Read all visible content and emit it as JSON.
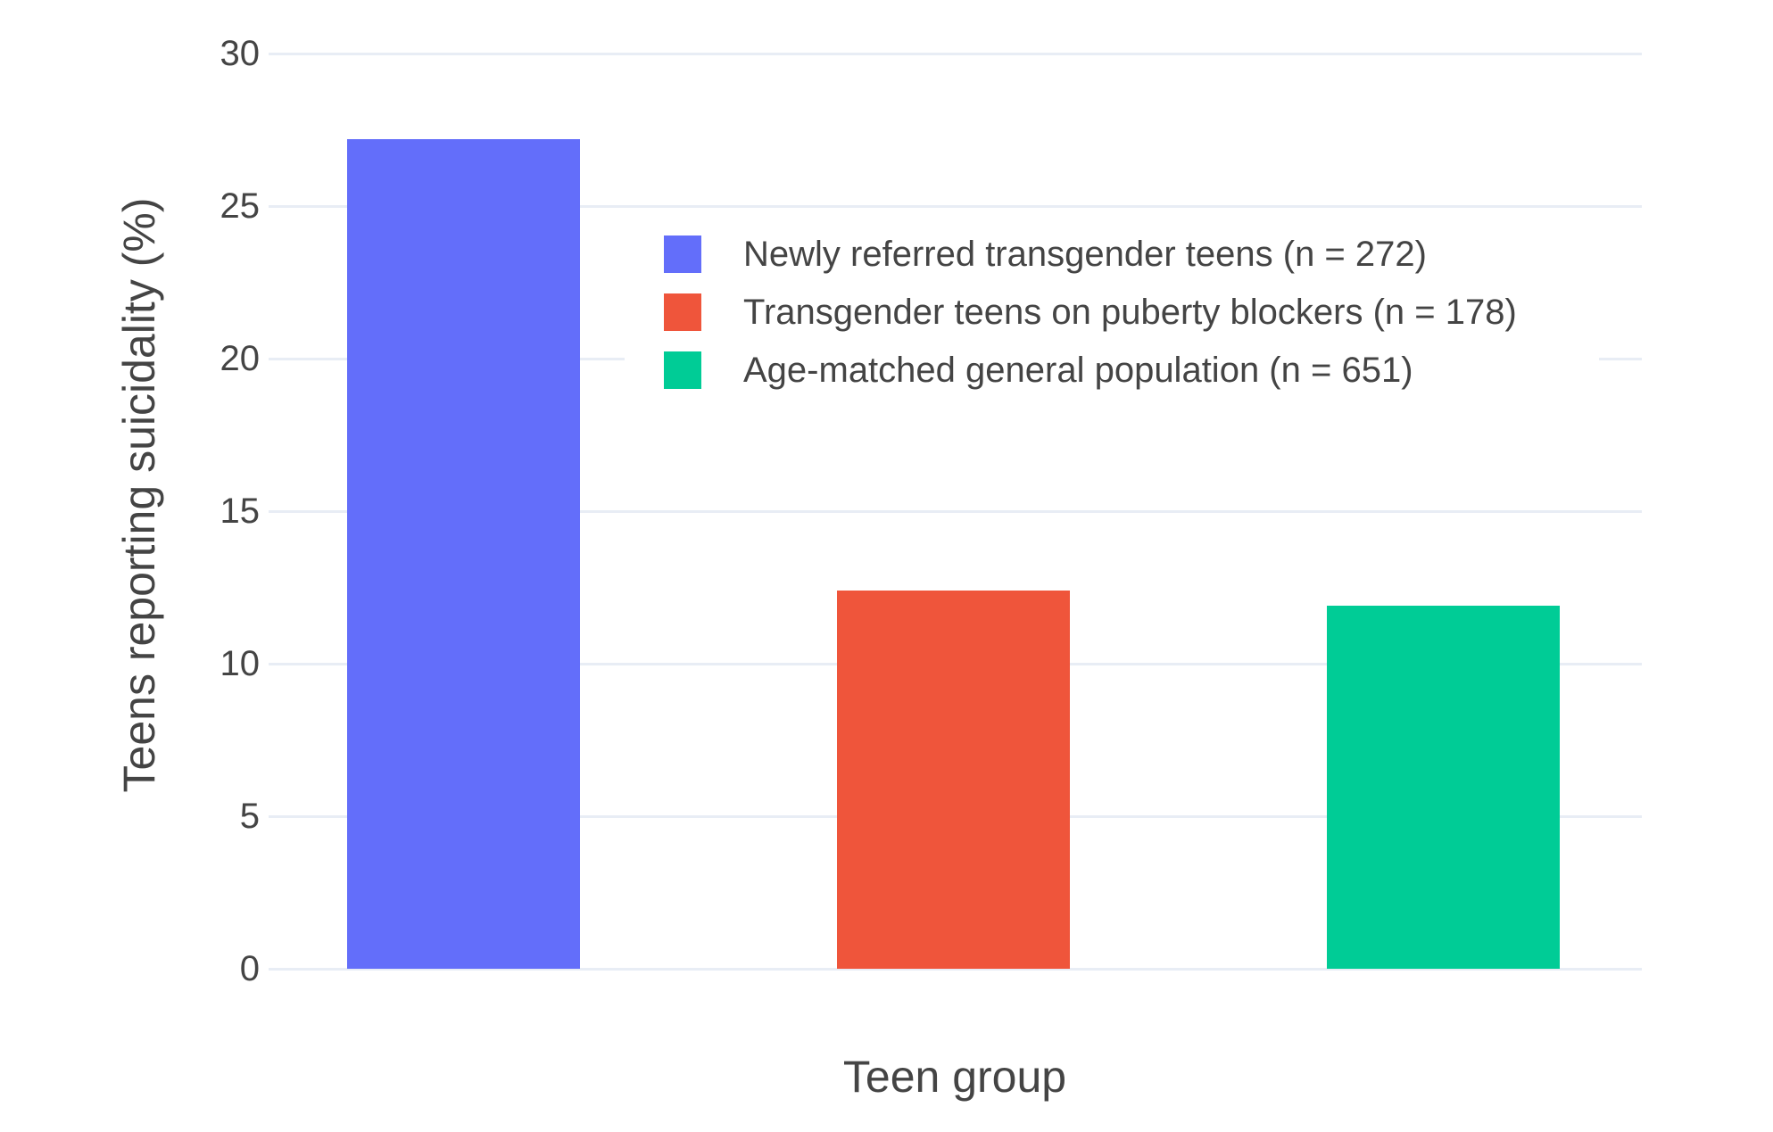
{
  "chart_data": {
    "type": "bar",
    "title": "",
    "xlabel": "Teen group",
    "ylabel": "Teens reporting suicidality (%)",
    "ylim": [
      0,
      30
    ],
    "yticks": [
      0,
      5,
      10,
      15,
      20,
      25,
      30
    ],
    "grid": true,
    "legend_position": "inside top-center",
    "categories": [
      "Newly referred transgender teens",
      "Transgender teens on puberty blockers",
      "Age-matched general population"
    ],
    "series": [
      {
        "name": "Newly referred transgender teens (n = 272)",
        "value": 27.2,
        "color": "#636EFA"
      },
      {
        "name": "Transgender teens on puberty blockers (n = 178)",
        "value": 12.4,
        "color": "#EF553B"
      },
      {
        "name": "Age-matched general population (n = 651)",
        "value": 11.9,
        "color": "#00CC96"
      }
    ]
  },
  "colors": {
    "background": "#FFFFFF",
    "gridline": "#E8EDF5",
    "text": "#444444"
  }
}
